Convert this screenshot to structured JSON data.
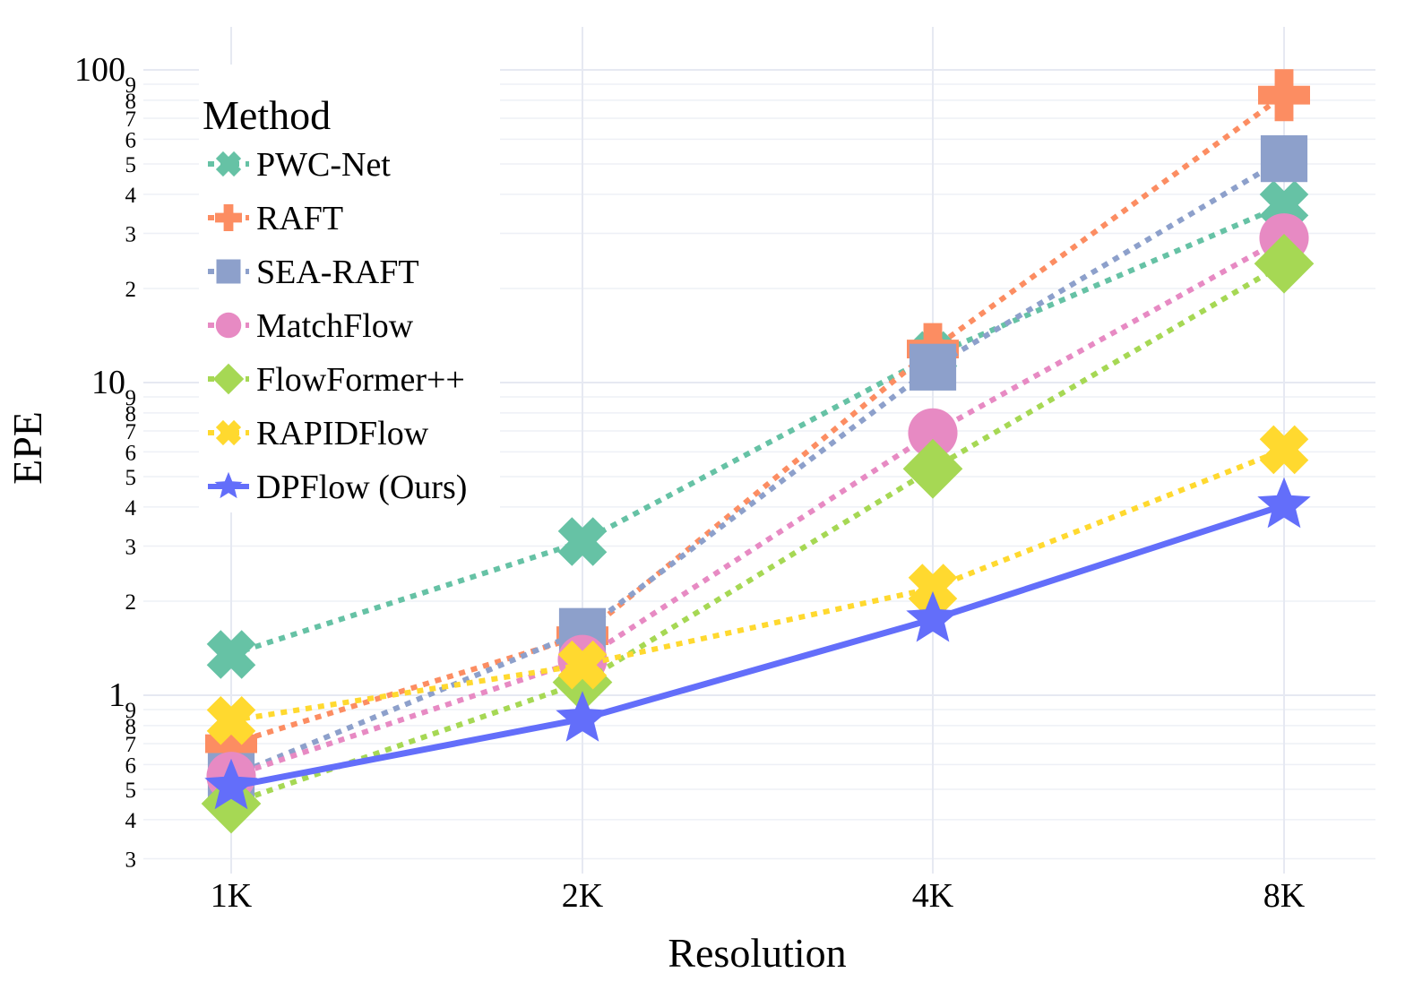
{
  "chart_data": {
    "type": "line",
    "title": "",
    "xlabel": "Resolution",
    "ylabel": "EPE",
    "y_scale": "log",
    "ylim": [
      0.27,
      130
    ],
    "categories": [
      "1K",
      "2K",
      "4K",
      "8K"
    ],
    "y_major_ticks": [
      {
        "value": 1,
        "label": "1"
      },
      {
        "value": 10,
        "label": "10"
      },
      {
        "value": 100,
        "label": "100"
      }
    ],
    "y_minor_ticks": [
      {
        "value": 0.3,
        "label": "3"
      },
      {
        "value": 0.4,
        "label": "4"
      },
      {
        "value": 0.5,
        "label": "5"
      },
      {
        "value": 0.6,
        "label": "6"
      },
      {
        "value": 0.7,
        "label": "7"
      },
      {
        "value": 0.8,
        "label": "8"
      },
      {
        "value": 0.9,
        "label": "9"
      },
      {
        "value": 2,
        "label": "2"
      },
      {
        "value": 3,
        "label": "3"
      },
      {
        "value": 4,
        "label": "4"
      },
      {
        "value": 5,
        "label": "5"
      },
      {
        "value": 6,
        "label": "6"
      },
      {
        "value": 7,
        "label": "7"
      },
      {
        "value": 8,
        "label": "8"
      },
      {
        "value": 9,
        "label": "9"
      },
      {
        "value": 20,
        "label": "2"
      },
      {
        "value": 30,
        "label": "3"
      },
      {
        "value": 40,
        "label": "4"
      },
      {
        "value": 50,
        "label": "5"
      },
      {
        "value": 60,
        "label": "6"
      },
      {
        "value": 70,
        "label": "7"
      },
      {
        "value": 80,
        "label": "8"
      },
      {
        "value": 90,
        "label": "9"
      }
    ],
    "legend": {
      "title": "Method",
      "position": "top-left"
    },
    "series": [
      {
        "name": "PWC-Net",
        "color": "#66c2a5",
        "marker": "x",
        "dash": "dot",
        "values": [
          1.35,
          3.1,
          12.2,
          37
        ]
      },
      {
        "name": "RAFT",
        "color": "#fc8d62",
        "marker": "cross",
        "dash": "dot",
        "values": [
          0.7,
          1.55,
          12.8,
          83
        ]
      },
      {
        "name": "SEA-RAFT",
        "color": "#8da0cb",
        "marker": "square",
        "dash": "dot",
        "values": [
          0.55,
          1.6,
          11.2,
          52
        ]
      },
      {
        "name": "MatchFlow",
        "color": "#e78ac3",
        "marker": "circle",
        "dash": "dot",
        "values": [
          0.55,
          1.3,
          6.9,
          29
        ]
      },
      {
        "name": "FlowFormer++",
        "color": "#a6d854",
        "marker": "diamond",
        "dash": "dot",
        "values": [
          0.45,
          1.1,
          5.3,
          24
        ]
      },
      {
        "name": "RAPIDFlow",
        "color": "#ffd92f",
        "marker": "x",
        "dash": "dot",
        "values": [
          0.83,
          1.25,
          2.2,
          6.1
        ]
      },
      {
        "name": "DPFlow (Ours)",
        "color": "#636efa",
        "marker": "star",
        "dash": "solid",
        "values": [
          0.51,
          0.84,
          1.75,
          4.05
        ]
      }
    ]
  }
}
